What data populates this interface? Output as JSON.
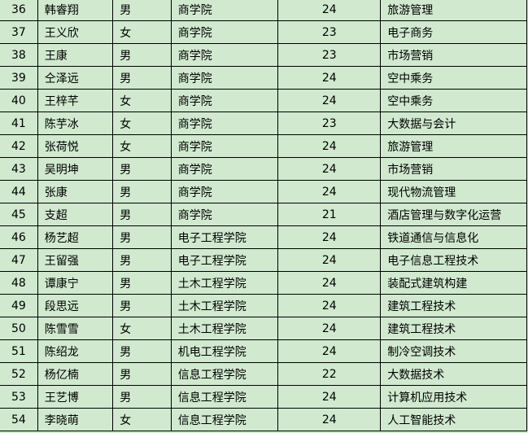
{
  "rows": [
    {
      "no": "36",
      "name": "韩睿翔",
      "gender": "男",
      "college": "商学院",
      "grade": "24",
      "major": "旅游管理"
    },
    {
      "no": "37",
      "name": "王义欣",
      "gender": "女",
      "college": "商学院",
      "grade": "23",
      "major": "电子商务"
    },
    {
      "no": "38",
      "name": "王康",
      "gender": "男",
      "college": "商学院",
      "grade": "23",
      "major": "市场营销"
    },
    {
      "no": "39",
      "name": "仝泽远",
      "gender": "男",
      "college": "商学院",
      "grade": "24",
      "major": "空中乘务"
    },
    {
      "no": "40",
      "name": "王梓芊",
      "gender": "女",
      "college": "商学院",
      "grade": "24",
      "major": "空中乘务"
    },
    {
      "no": "41",
      "name": "陈芋冰",
      "gender": "女",
      "college": "商学院",
      "grade": "23",
      "major": "大数据与会计"
    },
    {
      "no": "42",
      "name": "张荷悦",
      "gender": "女",
      "college": "商学院",
      "grade": "24",
      "major": "旅游管理"
    },
    {
      "no": "43",
      "name": "吴明坤",
      "gender": "男",
      "college": "商学院",
      "grade": "24",
      "major": "市场营销"
    },
    {
      "no": "44",
      "name": "张康",
      "gender": "男",
      "college": "商学院",
      "grade": "24",
      "major": "现代物流管理"
    },
    {
      "no": "45",
      "name": "支超",
      "gender": "男",
      "college": "商学院",
      "grade": "21",
      "major": "酒店管理与数字化运营"
    },
    {
      "no": "46",
      "name": "杨艺超",
      "gender": "男",
      "college": "电子工程学院",
      "grade": "24",
      "major": "铁道通信与信息化"
    },
    {
      "no": "47",
      "name": "王留强",
      "gender": "男",
      "college": "电子工程学院",
      "grade": "24",
      "major": "电子信息工程技术"
    },
    {
      "no": "48",
      "name": "谭康宁",
      "gender": "男",
      "college": "土木工程学院",
      "grade": "24",
      "major": "装配式建筑构建"
    },
    {
      "no": "49",
      "name": "段思远",
      "gender": "男",
      "college": "土木工程学院",
      "grade": "24",
      "major": "建筑工程技术"
    },
    {
      "no": "50",
      "name": "陈雪雪",
      "gender": "女",
      "college": "土木工程学院",
      "grade": "24",
      "major": "建筑工程技术"
    },
    {
      "no": "51",
      "name": "陈绍龙",
      "gender": "男",
      "college": "机电工程学院",
      "grade": "24",
      "major": "制冷空调技术"
    },
    {
      "no": "52",
      "name": "杨亿楠",
      "gender": "男",
      "college": "信息工程学院",
      "grade": "22",
      "major": "大数据技术"
    },
    {
      "no": "53",
      "name": "王艺博",
      "gender": "男",
      "college": "信息工程学院",
      "grade": "24",
      "major": "计算机应用技术"
    },
    {
      "no": "54",
      "name": "李晓萌",
      "gender": "女",
      "college": "信息工程学院",
      "grade": "24",
      "major": "人工智能技术"
    }
  ]
}
